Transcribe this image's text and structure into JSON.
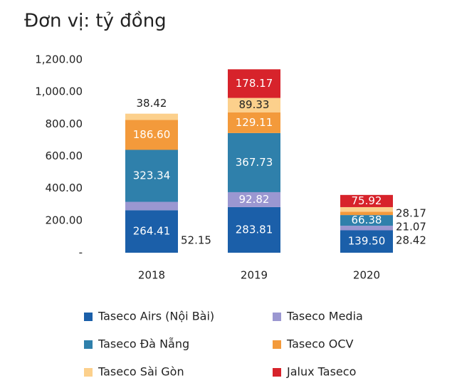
{
  "chart_data": {
    "type": "stacked_bar",
    "title": "Đơn vị: tỷ đồng",
    "categories": [
      "2018",
      "2019",
      "2020"
    ],
    "series": [
      {
        "name": "Taseco Airs (Nội Bài)",
        "color": "#1b5fa9",
        "values": [
          264.41,
          283.81,
          139.5
        ],
        "value_labels": [
          "264.41",
          "283.81",
          "139.50"
        ]
      },
      {
        "name": "Taseco Media",
        "color": "#9b97d1",
        "values": [
          52.15,
          92.82,
          28.42
        ],
        "value_labels": [
          "52.15",
          "92.82",
          "28.42"
        ]
      },
      {
        "name": "Taseco Đà Nẵng",
        "color": "#2f80ab",
        "values": [
          323.34,
          367.73,
          66.38
        ],
        "value_labels": [
          "323.34",
          "367.73",
          "66.38"
        ]
      },
      {
        "name": "Taseco OCV",
        "color": "#f39a3b",
        "values": [
          186.6,
          129.11,
          21.07
        ],
        "value_labels": [
          "186.60",
          "129.11",
          "21.07"
        ]
      },
      {
        "name": "Taseco Sài Gòn",
        "color": "#fcd08c",
        "values": [
          38.42,
          89.33,
          28.17
        ],
        "value_labels": [
          "38.42",
          "89.33",
          "28.17"
        ]
      },
      {
        "name": "Jalux Taseco",
        "color": "#d7232b",
        "values": [
          null,
          178.17,
          75.92
        ],
        "value_labels": [
          null,
          "178.17",
          "75.92"
        ]
      }
    ],
    "ylim": [
      0,
      1200
    ],
    "yticks": [
      {
        "value": 0,
        "label": "-"
      },
      {
        "value": 200,
        "label": "200.00"
      },
      {
        "value": 400,
        "label": "400.00"
      },
      {
        "value": 600,
        "label": "600.00"
      },
      {
        "value": 800,
        "label": "800.00"
      },
      {
        "value": 1000,
        "label": "1,000.00"
      },
      {
        "value": 1200,
        "label": "1,200.00"
      }
    ]
  }
}
